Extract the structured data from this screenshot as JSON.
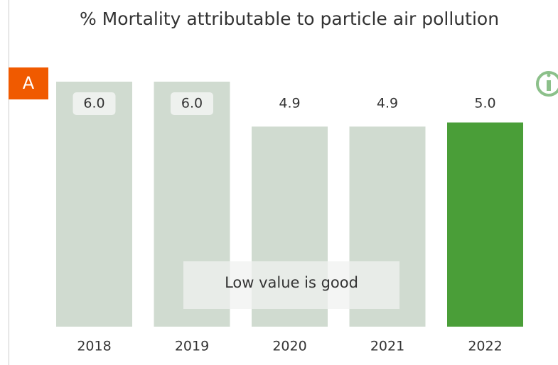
{
  "chart_data": {
    "type": "bar",
    "title": "% Mortality attributable to particle air pollution",
    "badge": "A",
    "annotation": "Low value is good",
    "categories": [
      "2018",
      "2019",
      "2020",
      "2021",
      "2022"
    ],
    "values": [
      6.0,
      6.0,
      4.9,
      4.9,
      5.0
    ],
    "value_labels": [
      "6.0",
      "6.0",
      "4.9",
      "4.9",
      "5.0"
    ],
    "colors": [
      "#d0dbd0",
      "#d0dbd0",
      "#d0dbd0",
      "#d0dbd0",
      "#4a9e38"
    ],
    "ylim": [
      0,
      6
    ]
  }
}
